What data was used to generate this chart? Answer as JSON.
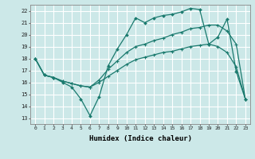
{
  "xlabel": "Humidex (Indice chaleur)",
  "bg_color": "#cce8e8",
  "grid_color": "#ffffff",
  "line_color": "#1a7a6e",
  "xlim": [
    -0.5,
    23.5
  ],
  "ylim": [
    12.5,
    22.5
  ],
  "xticks": [
    0,
    1,
    2,
    3,
    4,
    5,
    6,
    7,
    8,
    9,
    10,
    11,
    12,
    13,
    14,
    15,
    16,
    17,
    18,
    19,
    20,
    21,
    22,
    23
  ],
  "yticks": [
    13,
    14,
    15,
    16,
    17,
    18,
    19,
    20,
    21,
    22
  ],
  "line1_x": [
    0,
    1,
    2,
    3,
    4,
    5,
    6,
    7,
    8,
    9,
    10,
    11,
    12,
    13,
    14,
    15,
    16,
    17,
    18,
    19,
    20,
    21,
    22,
    23
  ],
  "line1_y": [
    18.0,
    16.6,
    16.4,
    16.0,
    15.6,
    14.6,
    13.2,
    14.8,
    17.4,
    18.8,
    20.0,
    21.4,
    21.0,
    21.4,
    21.6,
    21.7,
    21.9,
    22.2,
    22.1,
    19.2,
    19.8,
    21.3,
    16.9,
    14.6
  ],
  "line2_x": [
    0,
    1,
    2,
    3,
    4,
    5,
    6,
    7,
    8,
    9,
    10,
    11,
    12,
    13,
    14,
    15,
    16,
    17,
    18,
    19,
    20,
    21,
    22,
    23
  ],
  "line2_y": [
    18.0,
    16.6,
    16.4,
    16.1,
    15.9,
    15.7,
    15.6,
    16.2,
    17.1,
    17.8,
    18.5,
    19.0,
    19.2,
    19.5,
    19.7,
    20.0,
    20.2,
    20.5,
    20.6,
    20.8,
    20.8,
    20.3,
    19.2,
    14.6
  ],
  "line3_x": [
    0,
    1,
    2,
    3,
    4,
    5,
    6,
    7,
    8,
    9,
    10,
    11,
    12,
    13,
    14,
    15,
    16,
    17,
    18,
    19,
    20,
    21,
    22,
    23
  ],
  "line3_y": [
    18.0,
    16.6,
    16.4,
    16.1,
    15.9,
    15.7,
    15.6,
    16.0,
    16.5,
    17.0,
    17.5,
    17.9,
    18.1,
    18.3,
    18.5,
    18.6,
    18.8,
    19.0,
    19.1,
    19.2,
    19.0,
    18.5,
    17.3,
    14.6
  ]
}
